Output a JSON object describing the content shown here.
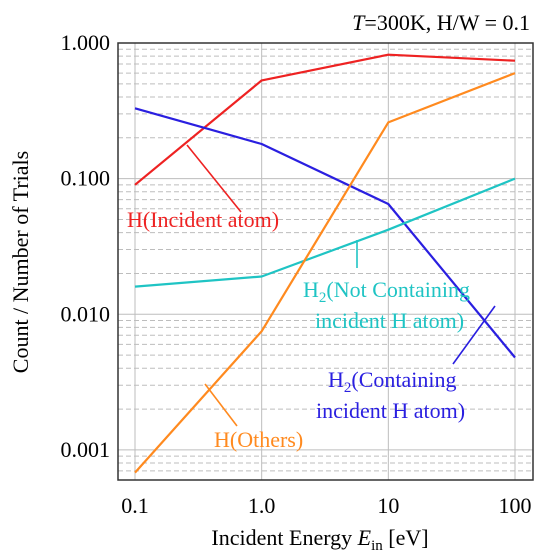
{
  "chart_data": {
    "type": "line",
    "title": "T=300K, H/W = 0.1",
    "title_parts": {
      "var": "T",
      "rest": "=300K, H/W = 0.1"
    },
    "xlabel": "Incident Energy E_in [eV]",
    "xlabel_parts": {
      "main": "Incident Energy ",
      "var": "E",
      "sub": "in",
      "unit": " [eV]"
    },
    "ylabel": "Count / Number of Trials",
    "xscale": "log",
    "yscale": "log",
    "xlim": [
      0.1,
      100
    ],
    "ylim": [
      0.0006,
      1.0
    ],
    "grid": true,
    "x": [
      0.1,
      1.0,
      10,
      100
    ],
    "x_tick_labels": [
      "0.1",
      "1.0",
      "10",
      "100"
    ],
    "y_ticks": [
      0.001,
      0.01,
      0.1,
      1.0
    ],
    "y_tick_labels": [
      "0.001",
      "0.010",
      "0.100",
      "1.000"
    ],
    "series": [
      {
        "id": "h-incident",
        "name": "H(Incident atom)",
        "color": "#ee2222",
        "values": [
          0.09,
          0.53,
          0.82,
          0.74
        ]
      },
      {
        "id": "h2-containing",
        "name": "H2(Containing incident H atom)",
        "color": "#2a1fe0",
        "values": [
          0.33,
          0.18,
          0.065,
          0.0048
        ]
      },
      {
        "id": "h2-not-containing",
        "name": "H2(Not Containing incident H atom)",
        "color": "#1fc4c4",
        "values": [
          0.016,
          0.019,
          0.042,
          0.1
        ]
      },
      {
        "id": "h-others",
        "name": "H(Others)",
        "color": "#ff8a1f",
        "values": [
          0.00068,
          0.0075,
          0.26,
          0.6
        ]
      }
    ],
    "annotations": {
      "h_incident": "H(Incident atom)",
      "h2_not_1_pre": "H",
      "h2_not_1_sub": "2",
      "h2_not_1_post": "(Not Containing",
      "h2_not_2": "incident H atom)",
      "h2_cont_1_pre": "H",
      "h2_cont_1_sub": "2",
      "h2_cont_1_post": "(Containing",
      "h2_cont_2": "incident H atom)",
      "h_others": "H(Others)"
    }
  }
}
